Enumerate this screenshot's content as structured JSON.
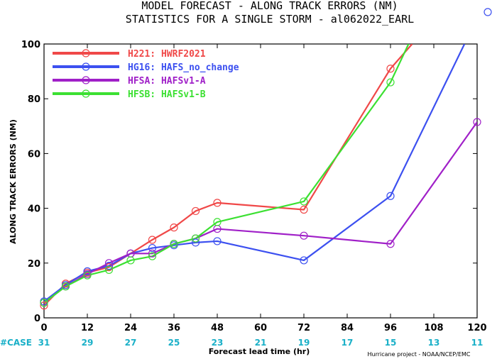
{
  "chart_data": {
    "type": "line",
    "title": "MODEL FORECAST - ALONG TRACK ERRORS (NM)",
    "subtitle": "STATISTICS FOR A SINGLE STORM - al062022_EARL",
    "xlabel": "Forecast lead time (hr)",
    "ylabel": "ALONG TRACK ERRORS (NM)",
    "xlim": [
      0,
      120
    ],
    "ylim": [
      0,
      100
    ],
    "x_ticks": [
      "0",
      "12",
      "24",
      "36",
      "48",
      "60",
      "72",
      "84",
      "96",
      "108",
      "120"
    ],
    "y_ticks": [
      "0",
      "20",
      "40",
      "60",
      "80",
      "100"
    ],
    "grid": false,
    "legend_position": "top-left",
    "case_label": "#CASE",
    "case_counts": [
      "31",
      "29",
      "27",
      "25",
      "23",
      "21",
      "19",
      "17",
      "15",
      "13",
      "11"
    ],
    "credit": "Hurricane project - NOAA/NCEP/EMC",
    "series": [
      {
        "name": "H221: HWRF2021",
        "color": "#f04848",
        "x": [
          0,
          6,
          12,
          18,
          24,
          30,
          36,
          42,
          48,
          72,
          96,
          102
        ],
        "y": [
          4.5,
          12.5,
          16.5,
          18.5,
          23.5,
          28.5,
          33,
          39,
          42,
          39.5,
          91,
          100
        ]
      },
      {
        "name": "HG16: HAFS_no_change",
        "color": "#3c50f0",
        "x": [
          0,
          6,
          12,
          18,
          24,
          30,
          36,
          42,
          48,
          72,
          96,
          116.5
        ],
        "y": [
          6,
          12,
          17,
          19,
          23.5,
          25.5,
          26.5,
          27.5,
          28,
          21,
          44.5,
          100
        ]
      },
      {
        "name": "HFSA: HAFSv1-A",
        "color": "#a020c8",
        "x": [
          0,
          6,
          12,
          18,
          24,
          30,
          36,
          42,
          48,
          72,
          96,
          120
        ],
        "y": [
          5.5,
          11.5,
          16,
          20,
          23.5,
          23.5,
          27,
          29,
          32.5,
          30,
          27,
          71.5
        ]
      },
      {
        "name": "HFSB: HAFSv1-B",
        "color": "#3ce032",
        "x": [
          0,
          6,
          12,
          18,
          24,
          30,
          36,
          42,
          48,
          72,
          96,
          101
        ],
        "y": [
          5.5,
          11.5,
          15.5,
          17.5,
          21,
          22.5,
          27,
          29,
          35,
          42.5,
          86,
          100
        ]
      }
    ],
    "markers": [
      {
        "series": 0,
        "x": [
          0,
          6,
          12,
          18,
          24,
          30,
          36,
          42,
          48,
          72,
          96
        ]
      },
      {
        "series": 1,
        "x": [
          0,
          6,
          12,
          18,
          24,
          30,
          36,
          42,
          48,
          72,
          96
        ]
      },
      {
        "series": 2,
        "x": [
          0,
          6,
          12,
          18,
          24,
          30,
          36,
          42,
          48,
          72,
          96,
          120
        ]
      },
      {
        "series": 3,
        "x": [
          0,
          6,
          12,
          18,
          24,
          30,
          36,
          42,
          48,
          72,
          96
        ]
      }
    ]
  }
}
